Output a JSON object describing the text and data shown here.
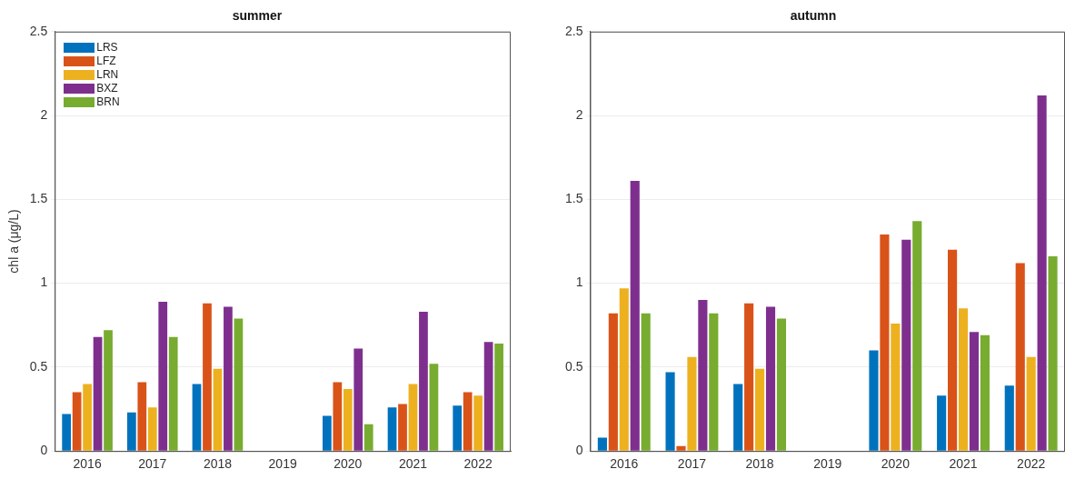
{
  "chart_data": [
    {
      "type": "bar",
      "title": "summer",
      "ylabel": "chl a (μg/L)",
      "categories": [
        "2016",
        "2017",
        "2018",
        "2019",
        "2020",
        "2021",
        "2022"
      ],
      "ylim": [
        0,
        2.5
      ],
      "yticks": [
        0,
        0.5,
        1,
        1.5,
        2,
        2.5
      ],
      "grid": "y",
      "legend": "top left",
      "series": [
        {
          "name": "LRS",
          "color": "#0072bd",
          "values": [
            0.22,
            0.23,
            0.4,
            null,
            0.21,
            0.26,
            0.27
          ]
        },
        {
          "name": "LFZ",
          "color": "#d95319",
          "values": [
            0.35,
            0.41,
            0.88,
            null,
            0.41,
            0.28,
            0.35
          ]
        },
        {
          "name": "LRN",
          "color": "#edb120",
          "values": [
            0.4,
            0.26,
            0.49,
            null,
            0.37,
            0.4,
            0.33
          ]
        },
        {
          "name": "BXZ",
          "color": "#7e2f8e",
          "values": [
            0.68,
            0.89,
            0.86,
            null,
            0.61,
            0.83,
            0.65
          ]
        },
        {
          "name": "BRN",
          "color": "#77ac30",
          "values": [
            0.72,
            0.68,
            0.79,
            null,
            0.16,
            0.52,
            0.64
          ]
        }
      ]
    },
    {
      "type": "bar",
      "title": "autumn",
      "categories": [
        "2016",
        "2017",
        "2018",
        "2019",
        "2020",
        "2021",
        "2022"
      ],
      "ylim": [
        0,
        2.5
      ],
      "yticks": [
        0,
        0.5,
        1,
        1.5,
        2,
        2.5
      ],
      "grid": "y",
      "series": [
        {
          "color": "#0072bd",
          "values": [
            0.08,
            0.47,
            0.4,
            null,
            0.6,
            0.33,
            0.39
          ]
        },
        {
          "color": "#d95319",
          "values": [
            0.82,
            0.03,
            0.88,
            null,
            1.29,
            1.2,
            1.12
          ]
        },
        {
          "color": "#edb120",
          "values": [
            0.97,
            0.56,
            0.49,
            null,
            0.76,
            0.85,
            0.56
          ]
        },
        {
          "color": "#7e2f8e",
          "values": [
            1.61,
            0.9,
            0.86,
            null,
            1.26,
            0.71,
            2.12
          ]
        },
        {
          "color": "#77ac30",
          "values": [
            0.82,
            0.82,
            0.79,
            null,
            1.37,
            0.69,
            1.16
          ]
        }
      ]
    }
  ]
}
